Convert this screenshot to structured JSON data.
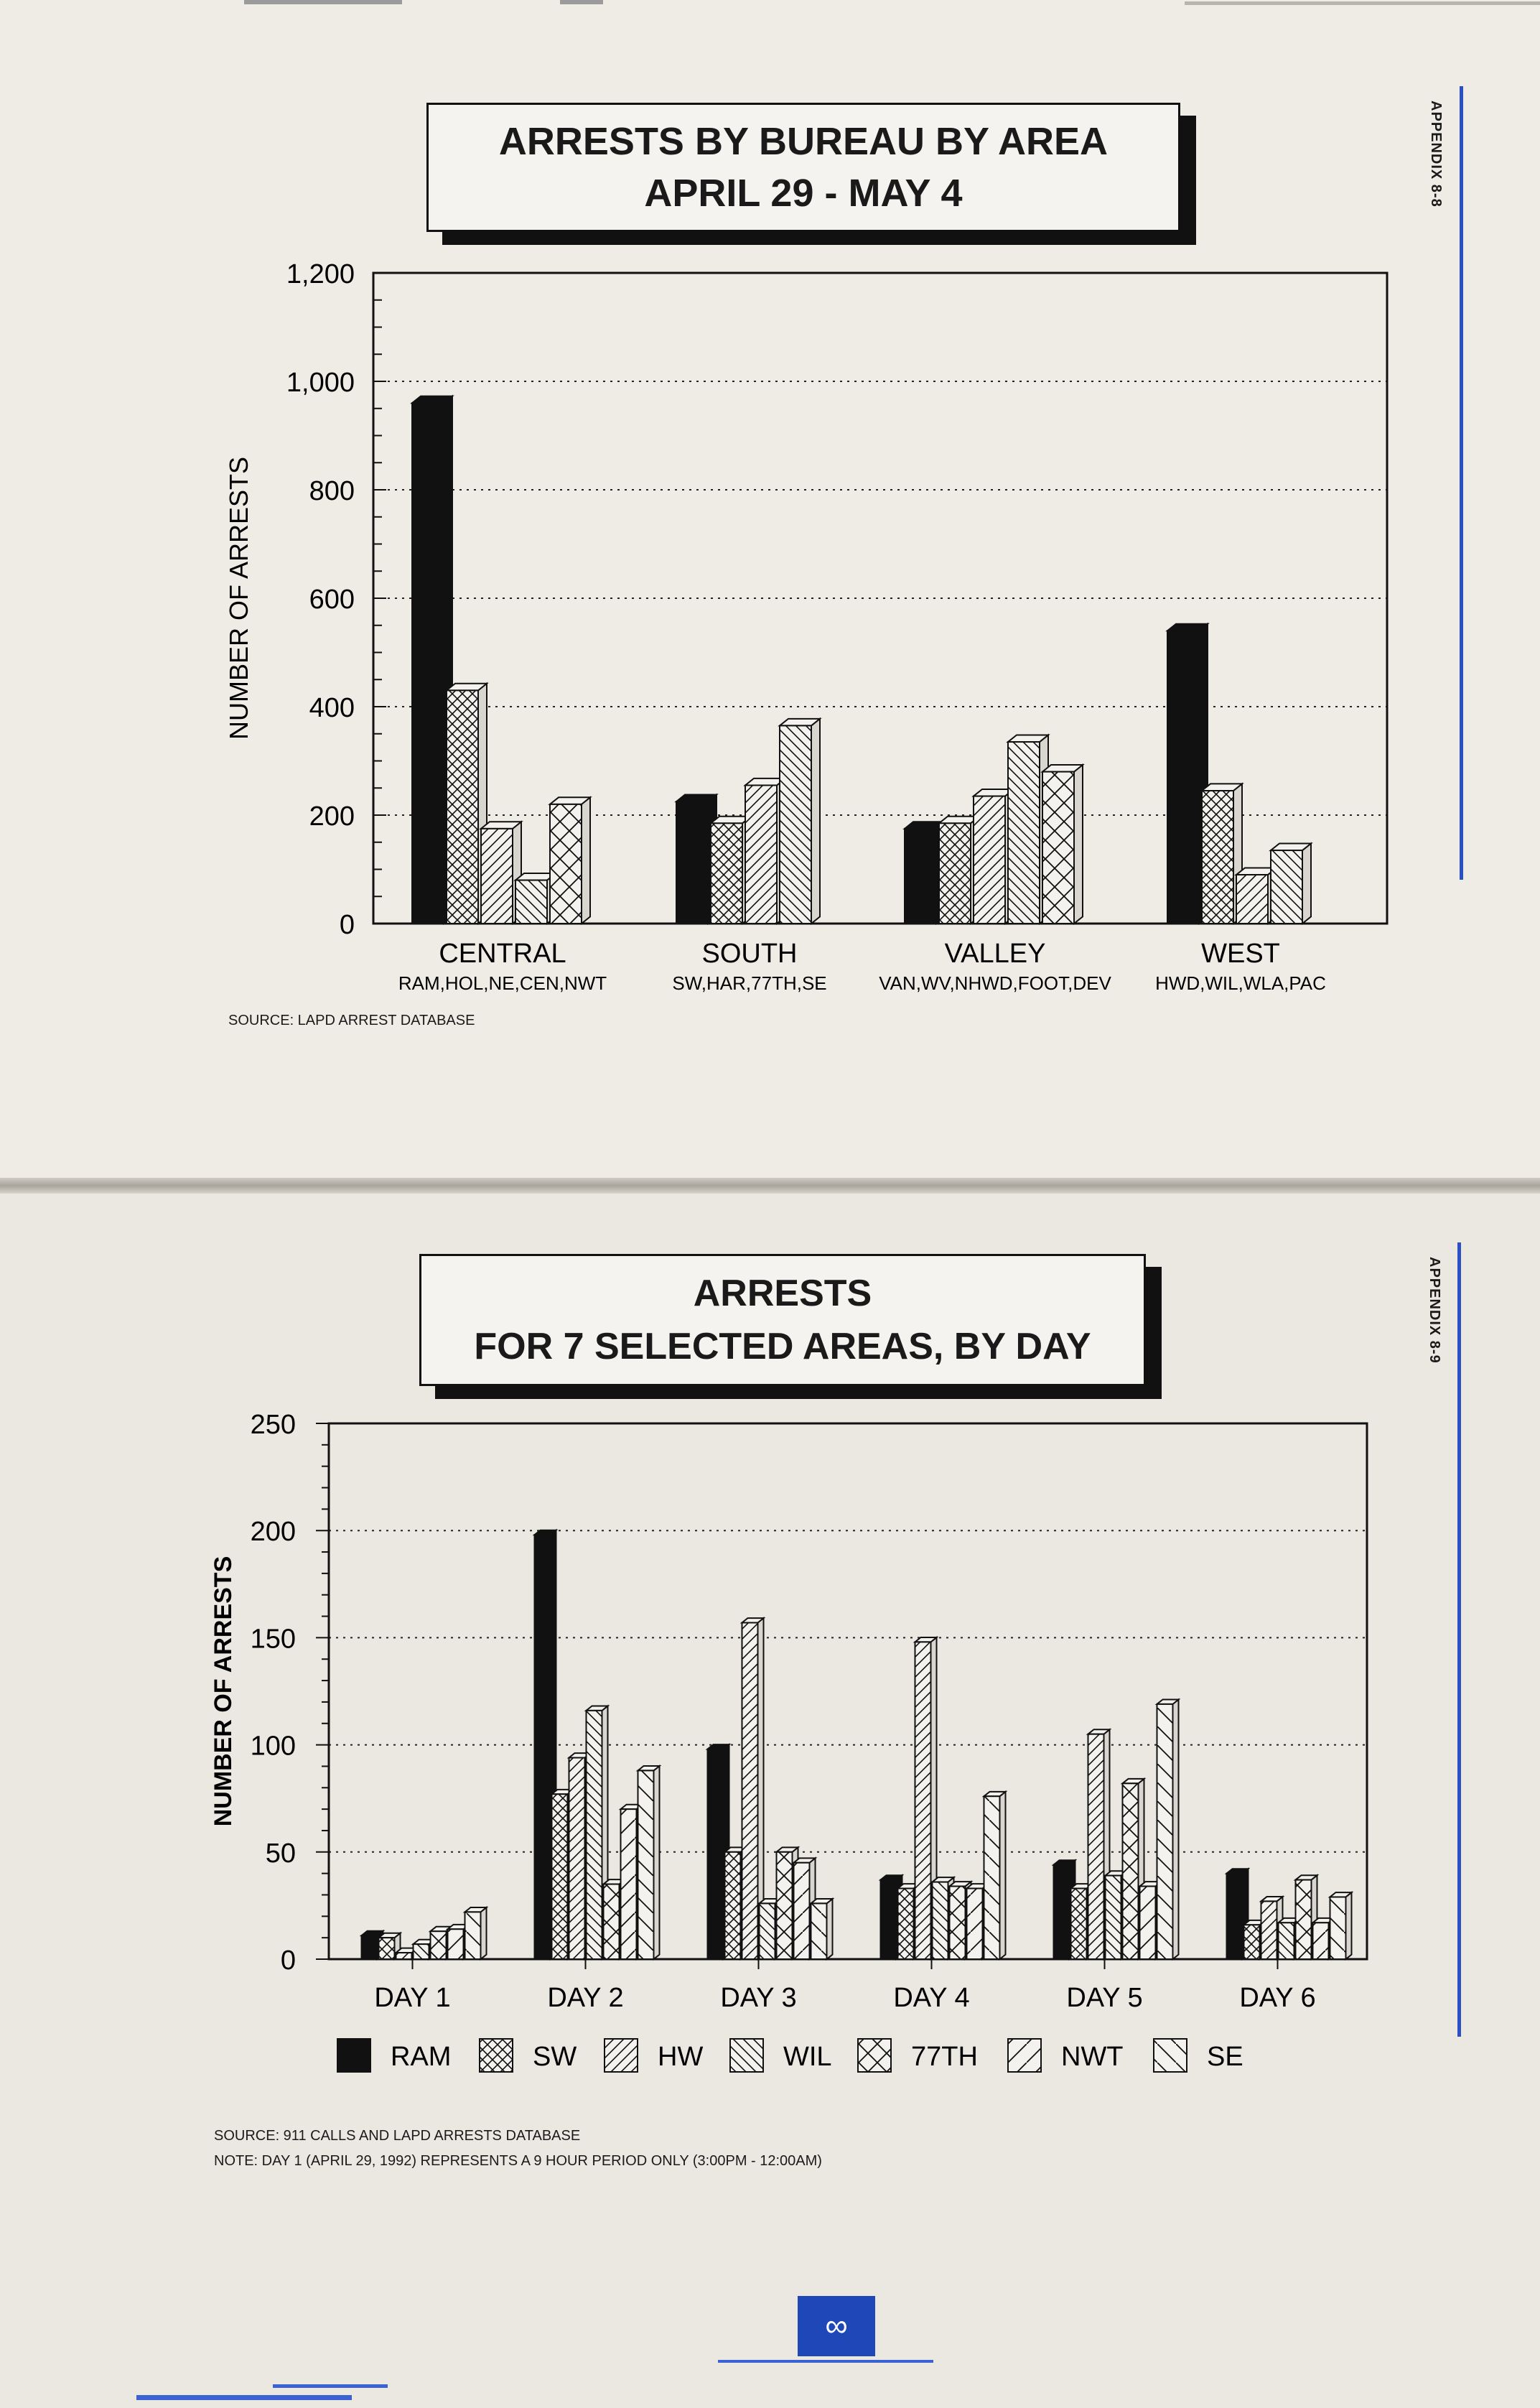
{
  "top_page": {
    "appendix_label": "APPENDIX 8-8",
    "title_line1": "ARRESTS BY BUREAU BY AREA",
    "title_line2": "APRIL 29 - MAY 4",
    "source": "SOURCE:  LAPD ARREST DATABASE"
  },
  "bottom_page": {
    "appendix_label": "APPENDIX 8-9",
    "title_line1": "ARRESTS",
    "title_line2": "FOR 7 SELECTED AREAS, BY DAY",
    "source": "SOURCE:  911 CALLS AND LAPD ARRESTS DATABASE",
    "note": "NOTE:  DAY 1 (APRIL 29, 1992) REPRESENTS A 9 HOUR PERIOD ONLY (3:00PM - 12:00AM)"
  },
  "page_number": "∞",
  "chart_data": [
    {
      "type": "bar",
      "title": "ARRESTS BY BUREAU BY AREA APRIL 29 - MAY 4",
      "ylabel": "NUMBER OF ARRESTS",
      "ylim": [
        0,
        1200
      ],
      "yticks": [
        "0",
        "200",
        "400",
        "600",
        "800",
        "1,000",
        "1,200"
      ],
      "grid": "dotted horizontal",
      "groups": [
        {
          "category": "CENTRAL",
          "sublabel": "RAM,HOL,NE,CEN,NWT",
          "values": [
            960,
            430,
            175,
            80,
            220
          ]
        },
        {
          "category": "SOUTH",
          "sublabel": "SW,HAR,77TH,SE",
          "values": [
            225,
            185,
            255,
            365
          ]
        },
        {
          "category": "VALLEY",
          "sublabel": "VAN,WV,NHWD,FOOT,DEV",
          "values": [
            175,
            185,
            235,
            335,
            280
          ]
        },
        {
          "category": "WEST",
          "sublabel": "HWD,WIL,WLA,PAC",
          "values": [
            540,
            245,
            90,
            135
          ]
        }
      ]
    },
    {
      "type": "bar",
      "title": "ARRESTS FOR 7 SELECTED AREAS, BY DAY",
      "ylabel": "NUMBER OF ARRESTS",
      "ylim": [
        0,
        250
      ],
      "yticks": [
        "0",
        "50",
        "100",
        "150",
        "200",
        "250"
      ],
      "grid": "dotted horizontal",
      "legend_placement": "bottom",
      "categories": [
        "DAY 1",
        "DAY 2",
        "DAY 3",
        "DAY 4",
        "DAY 5",
        "DAY 6"
      ],
      "series": [
        {
          "name": "RAM",
          "values": [
            11,
            198,
            98,
            37,
            44,
            40
          ]
        },
        {
          "name": "SW",
          "values": [
            10,
            77,
            50,
            33,
            33,
            16
          ]
        },
        {
          "name": "HW",
          "values": [
            3,
            94,
            157,
            148,
            105,
            27
          ]
        },
        {
          "name": "WIL",
          "values": [
            7,
            116,
            26,
            36,
            39,
            17
          ]
        },
        {
          "name": "77TH",
          "values": [
            13,
            35,
            50,
            34,
            82,
            37
          ]
        },
        {
          "name": "NWT",
          "values": [
            14,
            70,
            45,
            33,
            34,
            17
          ]
        },
        {
          "name": "SE",
          "values": [
            22,
            88,
            26,
            76,
            119,
            29
          ]
        }
      ]
    }
  ]
}
